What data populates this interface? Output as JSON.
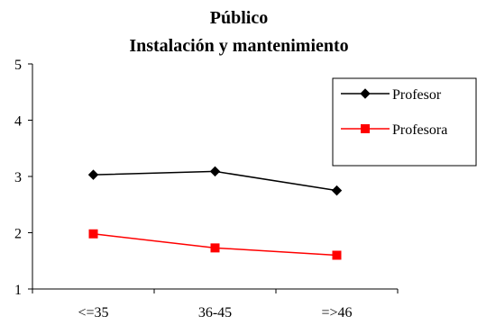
{
  "chart_data": {
    "type": "line",
    "title": "Público",
    "subtitle": "Instalación y mantenimiento",
    "xlabel": "",
    "ylabel": "",
    "categories": [
      "<=35",
      "36-45",
      "=>46"
    ],
    "ylim": [
      1,
      5
    ],
    "yticks": [
      "1",
      "2",
      "3",
      "4",
      "5"
    ],
    "grid": false,
    "legend_position": "right",
    "series": [
      {
        "name": "Profesor",
        "values": [
          3.03,
          3.09,
          2.75
        ],
        "color": "#000000",
        "marker": "diamond"
      },
      {
        "name": "Profesora",
        "values": [
          1.98,
          1.73,
          1.6
        ],
        "color": "#ff0000",
        "marker": "square"
      }
    ]
  }
}
